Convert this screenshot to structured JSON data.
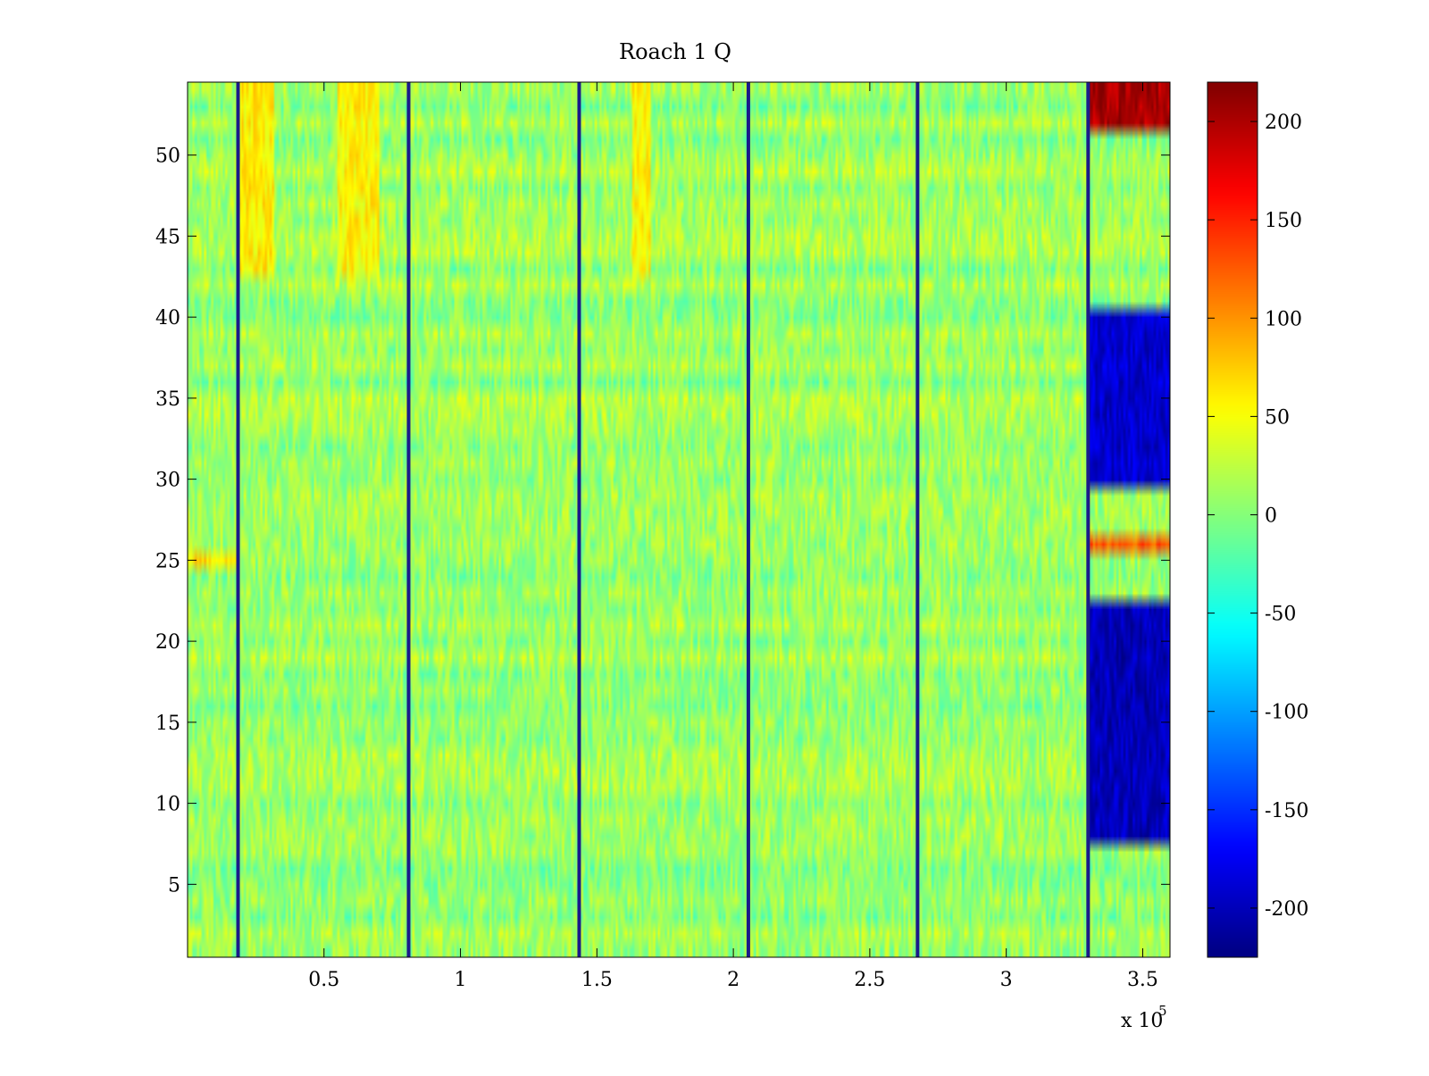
{
  "chart_data": {
    "type": "heatmap",
    "title": "Roach 1 Q",
    "xlabel": "",
    "ylabel": "",
    "x_range": [
      0,
      360000
    ],
    "y_range": [
      0.5,
      54.5
    ],
    "x_multiplier_label": "x 10",
    "x_multiplier_exponent": "5",
    "x_ticks": [
      {
        "value": 0.5,
        "label": "0.5"
      },
      {
        "value": 1,
        "label": "1"
      },
      {
        "value": 1.5,
        "label": "1.5"
      },
      {
        "value": 2,
        "label": "2"
      },
      {
        "value": 2.5,
        "label": "2.5"
      },
      {
        "value": 3,
        "label": "3"
      },
      {
        "value": 3.5,
        "label": "3.5"
      }
    ],
    "y_ticks": [
      {
        "value": 5,
        "label": "5"
      },
      {
        "value": 10,
        "label": "10"
      },
      {
        "value": 15,
        "label": "15"
      },
      {
        "value": 20,
        "label": "20"
      },
      {
        "value": 25,
        "label": "25"
      },
      {
        "value": 30,
        "label": "30"
      },
      {
        "value": 35,
        "label": "35"
      },
      {
        "value": 40,
        "label": "40"
      },
      {
        "value": 45,
        "label": "45"
      },
      {
        "value": 50,
        "label": "50"
      }
    ],
    "colorbar": {
      "colormap": "jet",
      "clim": [
        -225,
        220
      ],
      "ticks": [
        {
          "value": 200,
          "label": "200"
        },
        {
          "value": 150,
          "label": "150"
        },
        {
          "value": 100,
          "label": "100"
        },
        {
          "value": 50,
          "label": "50"
        },
        {
          "value": 0,
          "label": "0"
        },
        {
          "value": -50,
          "label": "-50"
        },
        {
          "value": -100,
          "label": "-100"
        },
        {
          "value": -150,
          "label": "-150"
        },
        {
          "value": -200,
          "label": "-200"
        }
      ]
    },
    "rows": 54,
    "baseline_value": 10,
    "spike_columns_x": [
      18500,
      81000,
      143500,
      205500,
      267500,
      330000
    ],
    "regions": [
      {
        "x_from": 18500,
        "x_to": 32000,
        "y_from": 43,
        "y_to": 54,
        "value": 60
      },
      {
        "x_from": 55000,
        "x_to": 70000,
        "y_from": 43,
        "y_to": 54,
        "value": 55
      },
      {
        "x_from": 163000,
        "x_to": 170000,
        "y_from": 43,
        "y_to": 54,
        "value": 55
      },
      {
        "x_from": 1,
        "x_to": 18500,
        "y_from": 25,
        "y_to": 25,
        "value": 70
      },
      {
        "x_from": 330000,
        "x_to": 360000,
        "y_from": 30,
        "y_to": 40,
        "value": -190
      },
      {
        "x_from": 330000,
        "x_to": 360000,
        "y_from": 8,
        "y_to": 22,
        "value": -200
      },
      {
        "x_from": 330000,
        "x_to": 360000,
        "y_from": 52,
        "y_to": 54,
        "value": 200
      },
      {
        "x_from": 330000,
        "x_to": 360000,
        "y_from": 26,
        "y_to": 26,
        "value": 130
      }
    ]
  }
}
